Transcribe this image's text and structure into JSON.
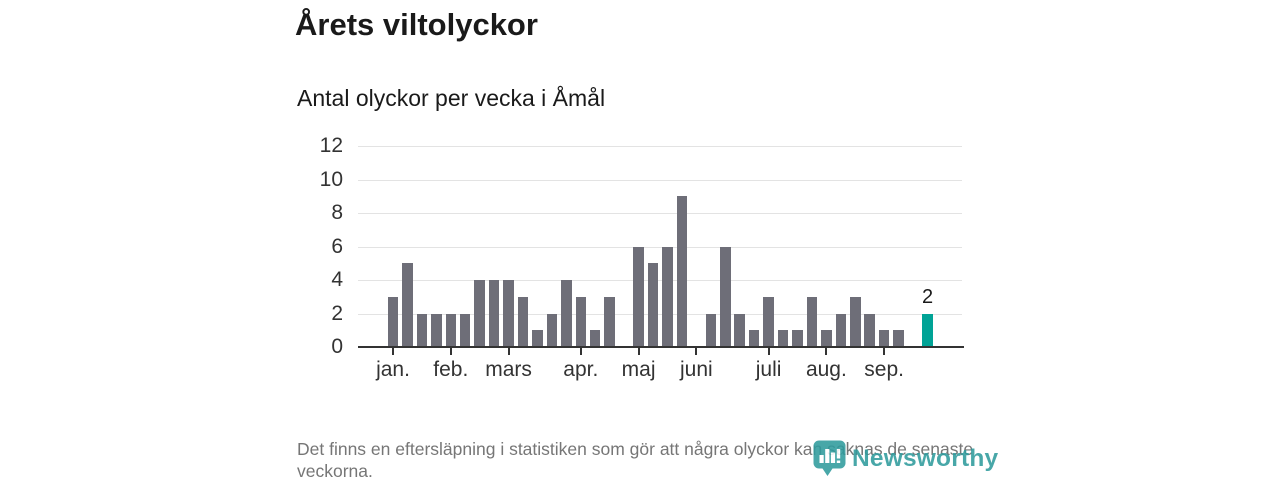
{
  "title": "Årets viltolyckor",
  "subtitle": "Antal olyckor per vecka i Åmål",
  "footer_note": "Det finns en eftersläpning i statistiken som gör att några olyckor kan saknas de senaste veckorna.",
  "logo": {
    "text": "Newsworthy",
    "icon": "newsworthy-pin-barchart-icon",
    "color": "#2f9b9d"
  },
  "colors": {
    "bar": "#6e6e78",
    "highlight_bar": "#00a396",
    "gridline": "#e3e3e3",
    "axis": "#333333",
    "title_text": "#1a1a1a",
    "footer_text": "#767676"
  },
  "chart_data": {
    "type": "bar",
    "title": "Årets viltolyckor",
    "subtitle": "Antal olyckor per vecka i Åmål",
    "x_unit": "vecka (week of year)",
    "ylabel": "Antal olyckor",
    "ylim": [
      0,
      12
    ],
    "yticks": [
      0,
      2,
      4,
      6,
      8,
      10,
      12
    ],
    "grid": "horizontal",
    "values": [
      3,
      5,
      2,
      2,
      2,
      2,
      4,
      4,
      4,
      3,
      1,
      2,
      4,
      3,
      1,
      3,
      0,
      6,
      5,
      6,
      9,
      0,
      2,
      6,
      2,
      1,
      3,
      1,
      1,
      3,
      1,
      2,
      3,
      2,
      1,
      1,
      0,
      2
    ],
    "highlight_index": 37,
    "highlight_value_label": "2",
    "month_ticks": [
      {
        "label": "jan.",
        "week_index": 0
      },
      {
        "label": "feb.",
        "week_index": 4
      },
      {
        "label": "mars",
        "week_index": 8
      },
      {
        "label": "apr.",
        "week_index": 13
      },
      {
        "label": "maj",
        "week_index": 17
      },
      {
        "label": "juni",
        "week_index": 21
      },
      {
        "label": "juli",
        "week_index": 26
      },
      {
        "label": "aug.",
        "week_index": 30
      },
      {
        "label": "sep.",
        "week_index": 34
      }
    ]
  }
}
